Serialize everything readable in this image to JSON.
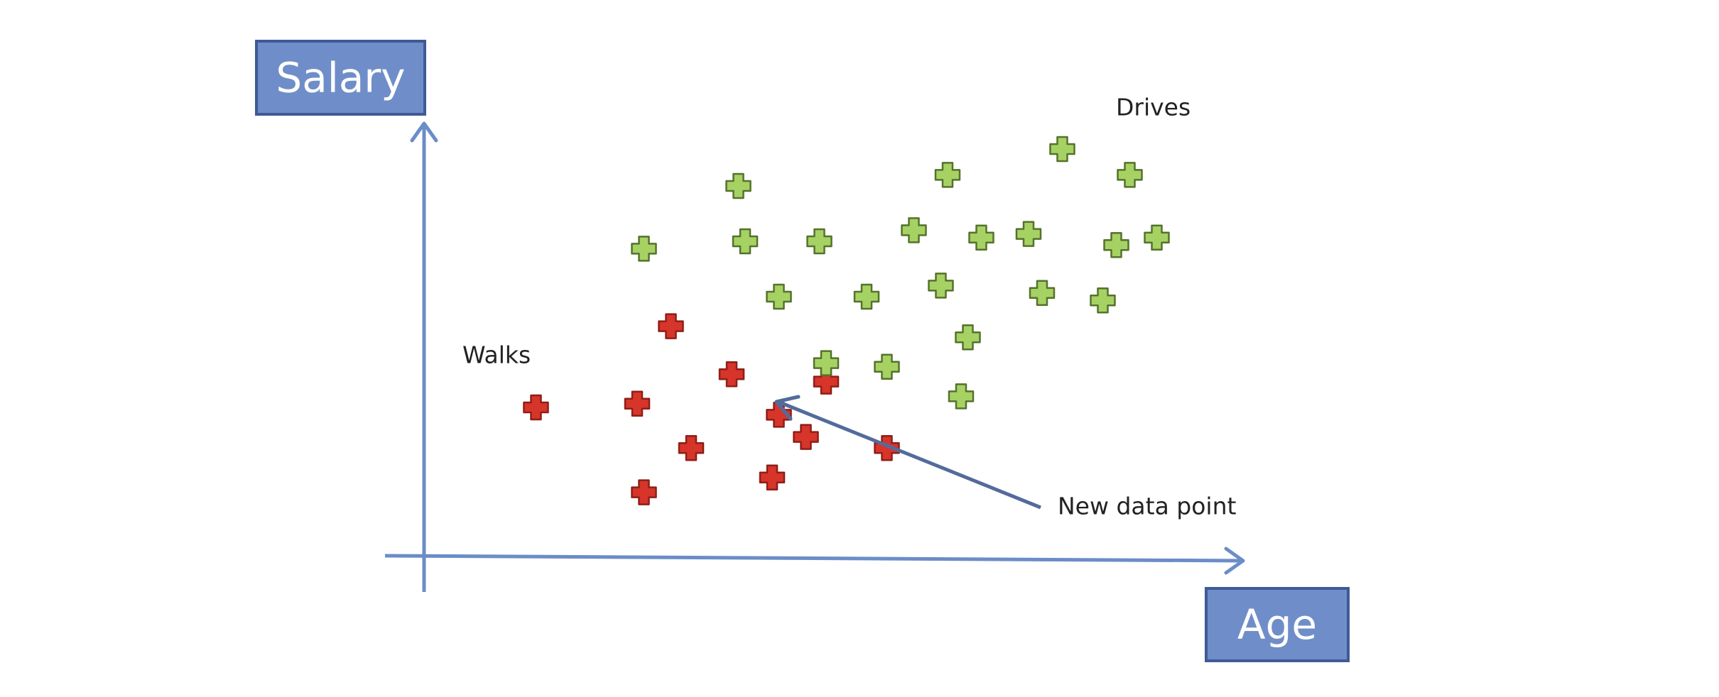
{
  "labels": {
    "y_axis": "Salary",
    "x_axis": "Age",
    "group_walks": "Walks",
    "group_drives": "Drives",
    "new_point": "New data point"
  },
  "colors": {
    "axis": "#6b8dc7",
    "box_fill": "#6f8ec9",
    "box_border": "#3f5a96",
    "walks_fill": "#d7342a",
    "walks_border": "#8e1f18",
    "drives_fill": "#a6d264",
    "drives_border": "#55722b",
    "arrow": "#536b9b"
  },
  "icons": {
    "walks_marker": "red-plus-icon",
    "drives_marker": "green-plus-icon"
  },
  "chart_data": {
    "type": "scatter",
    "xlabel": "Age",
    "ylabel": "Salary",
    "series": [
      {
        "name": "Walks",
        "points": [
          [
            0.11,
            0.3
          ],
          [
            0.26,
            0.31
          ],
          [
            0.31,
            0.52
          ],
          [
            0.27,
            0.07
          ],
          [
            0.34,
            0.19
          ],
          [
            0.4,
            0.39
          ],
          [
            0.47,
            0.28
          ],
          [
            0.46,
            0.11
          ],
          [
            0.51,
            0.22
          ],
          [
            0.54,
            0.37
          ],
          [
            0.63,
            0.19
          ]
        ]
      },
      {
        "name": "Drives",
        "points": [
          [
            0.41,
            0.9
          ],
          [
            0.27,
            0.73
          ],
          [
            0.42,
            0.75
          ],
          [
            0.53,
            0.75
          ],
          [
            0.47,
            0.6
          ],
          [
            0.6,
            0.6
          ],
          [
            0.54,
            0.42
          ],
          [
            0.63,
            0.41
          ],
          [
            0.67,
            0.78
          ],
          [
            0.72,
            0.93
          ],
          [
            0.71,
            0.63
          ],
          [
            0.75,
            0.49
          ],
          [
            0.77,
            0.76
          ],
          [
            0.74,
            0.33
          ],
          [
            0.84,
            0.77
          ],
          [
            0.86,
            0.61
          ],
          [
            0.89,
            1.0
          ],
          [
            0.99,
            0.93
          ],
          [
            0.97,
            0.74
          ],
          [
            0.95,
            0.59
          ],
          [
            1.03,
            0.76
          ]
        ]
      }
    ]
  }
}
